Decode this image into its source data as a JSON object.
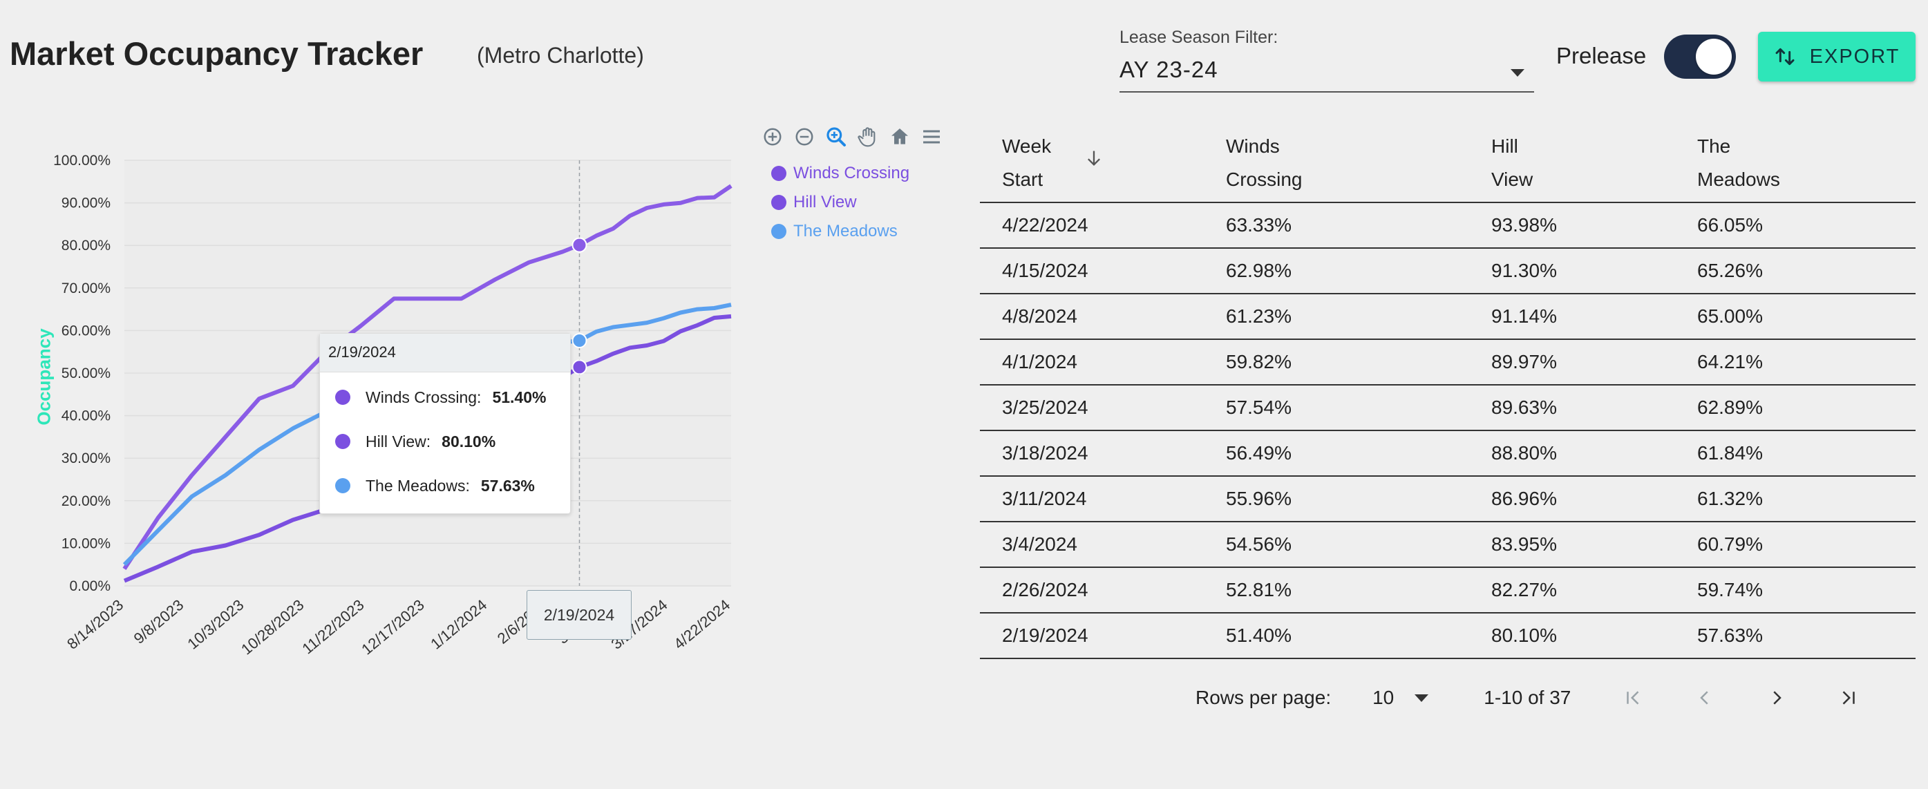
{
  "header": {
    "title": "Market Occupancy Tracker",
    "subtitle": "(Metro Charlotte)",
    "filter_label": "Lease Season Filter:",
    "filter_value": "AY 23-24",
    "prelease_label": "Prelease",
    "prelease_on": true,
    "export_label": "EXPORT"
  },
  "chart_toolbar": [
    "zoom-in-icon",
    "zoom-out-icon",
    "zoom-selection-icon",
    "pan-icon",
    "home-icon",
    "menu-icon"
  ],
  "chart_data": {
    "type": "line",
    "ylabel": "Occupancy",
    "ylim": [
      0,
      100
    ],
    "y_ticks": [
      "0.00%",
      "10.00%",
      "20.00%",
      "30.00%",
      "40.00%",
      "50.00%",
      "60.00%",
      "70.00%",
      "80.00%",
      "90.00%",
      "100.00%"
    ],
    "x_ticks": [
      "8/14/2023",
      "9/8/2023",
      "10/3/2023",
      "10/28/2023",
      "11/22/2023",
      "12/17/2023",
      "1/12/2024",
      "2/6/2024",
      "3/2/2024",
      "3/27/2024",
      "4/22/2024"
    ],
    "x_start": "8/14/2023",
    "x_end": "4/22/2024",
    "series": [
      {
        "name": "Winds Crossing",
        "color": "#7b4fe0",
        "x": [
          "8/14/2023",
          "8/28/2023",
          "9/11/2023",
          "9/25/2023",
          "10/9/2023",
          "10/23/2023",
          "11/6/2023",
          "11/20/2023",
          "12/4/2023",
          "12/18/2023",
          "1/1/2024",
          "1/15/2024",
          "1/29/2024",
          "2/12/2024",
          "2/19/2024",
          "2/26/2024",
          "3/4/2024",
          "3/11/2024",
          "3/18/2024",
          "3/25/2024",
          "4/1/2024",
          "4/8/2024",
          "4/15/2024",
          "4/22/2024"
        ],
        "values": [
          1.2,
          4.5,
          8.0,
          9.5,
          12.0,
          15.5,
          18.0,
          22.0,
          26.0,
          30.0,
          34.0,
          39.0,
          44.0,
          49.0,
          51.4,
          52.81,
          54.56,
          55.96,
          56.49,
          57.54,
          59.82,
          61.23,
          62.98,
          63.33
        ]
      },
      {
        "name": "Hill View",
        "color": "#8a5ce6",
        "x": [
          "8/14/2023",
          "8/28/2023",
          "9/11/2023",
          "9/25/2023",
          "10/9/2023",
          "10/23/2023",
          "11/6/2023",
          "11/20/2023",
          "12/4/2023",
          "12/18/2023",
          "1/1/2024",
          "1/15/2024",
          "1/29/2024",
          "2/12/2024",
          "2/19/2024",
          "2/26/2024",
          "3/4/2024",
          "3/11/2024",
          "3/18/2024",
          "3/25/2024",
          "4/1/2024",
          "4/8/2024",
          "4/15/2024",
          "4/22/2024"
        ],
        "values": [
          4.0,
          16.0,
          26.0,
          35.0,
          44.0,
          47.0,
          55.0,
          61.0,
          67.5,
          67.5,
          67.5,
          72.0,
          76.0,
          78.5,
          80.1,
          82.27,
          83.95,
          86.96,
          88.8,
          89.63,
          89.97,
          91.14,
          91.3,
          93.98
        ]
      },
      {
        "name": "The Meadows",
        "color": "#5aa0ef",
        "x": [
          "8/14/2023",
          "8/28/2023",
          "9/11/2023",
          "9/25/2023",
          "10/9/2023",
          "10/23/2023",
          "11/6/2023",
          "11/20/2023",
          "12/4/2023",
          "12/18/2023",
          "1/1/2024",
          "1/15/2024",
          "1/29/2024",
          "2/12/2024",
          "2/19/2024",
          "2/26/2024",
          "3/4/2024",
          "3/11/2024",
          "3/18/2024",
          "3/25/2024",
          "4/1/2024",
          "4/8/2024",
          "4/15/2024",
          "4/22/2024"
        ],
        "values": [
          5.0,
          13.0,
          21.0,
          26.0,
          32.0,
          37.0,
          41.0,
          45.0,
          48.5,
          51.0,
          53.0,
          55.0,
          56.5,
          57.2,
          57.63,
          59.74,
          60.79,
          61.32,
          61.84,
          62.89,
          64.21,
          65.0,
          65.26,
          66.05
        ]
      }
    ],
    "tooltip": {
      "date": "2/19/2024",
      "rows": [
        {
          "name": "Winds Crossing:",
          "value": "51.40%",
          "color": "#7b4fe0"
        },
        {
          "name": "Hill View:",
          "value": "80.10%",
          "color": "#7b4fe0"
        },
        {
          "name": "The Meadows:",
          "value": "57.63%",
          "color": "#5aa0ef"
        }
      ],
      "x_label": "2/19/2024"
    }
  },
  "table": {
    "headers": [
      [
        "Week",
        "Start"
      ],
      [
        "Winds",
        "Crossing"
      ],
      [
        "Hill",
        "View"
      ],
      [
        "The",
        "Meadows"
      ]
    ],
    "rows": [
      [
        "4/22/2024",
        "63.33%",
        "93.98%",
        "66.05%"
      ],
      [
        "4/15/2024",
        "62.98%",
        "91.30%",
        "65.26%"
      ],
      [
        "4/8/2024",
        "61.23%",
        "91.14%",
        "65.00%"
      ],
      [
        "4/1/2024",
        "59.82%",
        "89.97%",
        "64.21%"
      ],
      [
        "3/25/2024",
        "57.54%",
        "89.63%",
        "62.89%"
      ],
      [
        "3/18/2024",
        "56.49%",
        "88.80%",
        "61.84%"
      ],
      [
        "3/11/2024",
        "55.96%",
        "86.96%",
        "61.32%"
      ],
      [
        "3/4/2024",
        "54.56%",
        "83.95%",
        "60.79%"
      ],
      [
        "2/26/2024",
        "52.81%",
        "82.27%",
        "59.74%"
      ],
      [
        "2/19/2024",
        "51.40%",
        "80.10%",
        "57.63%"
      ]
    ]
  },
  "pager": {
    "rows_per_page_label": "Rows per page:",
    "rows_per_page": "10",
    "range": "1-10 of 37"
  }
}
